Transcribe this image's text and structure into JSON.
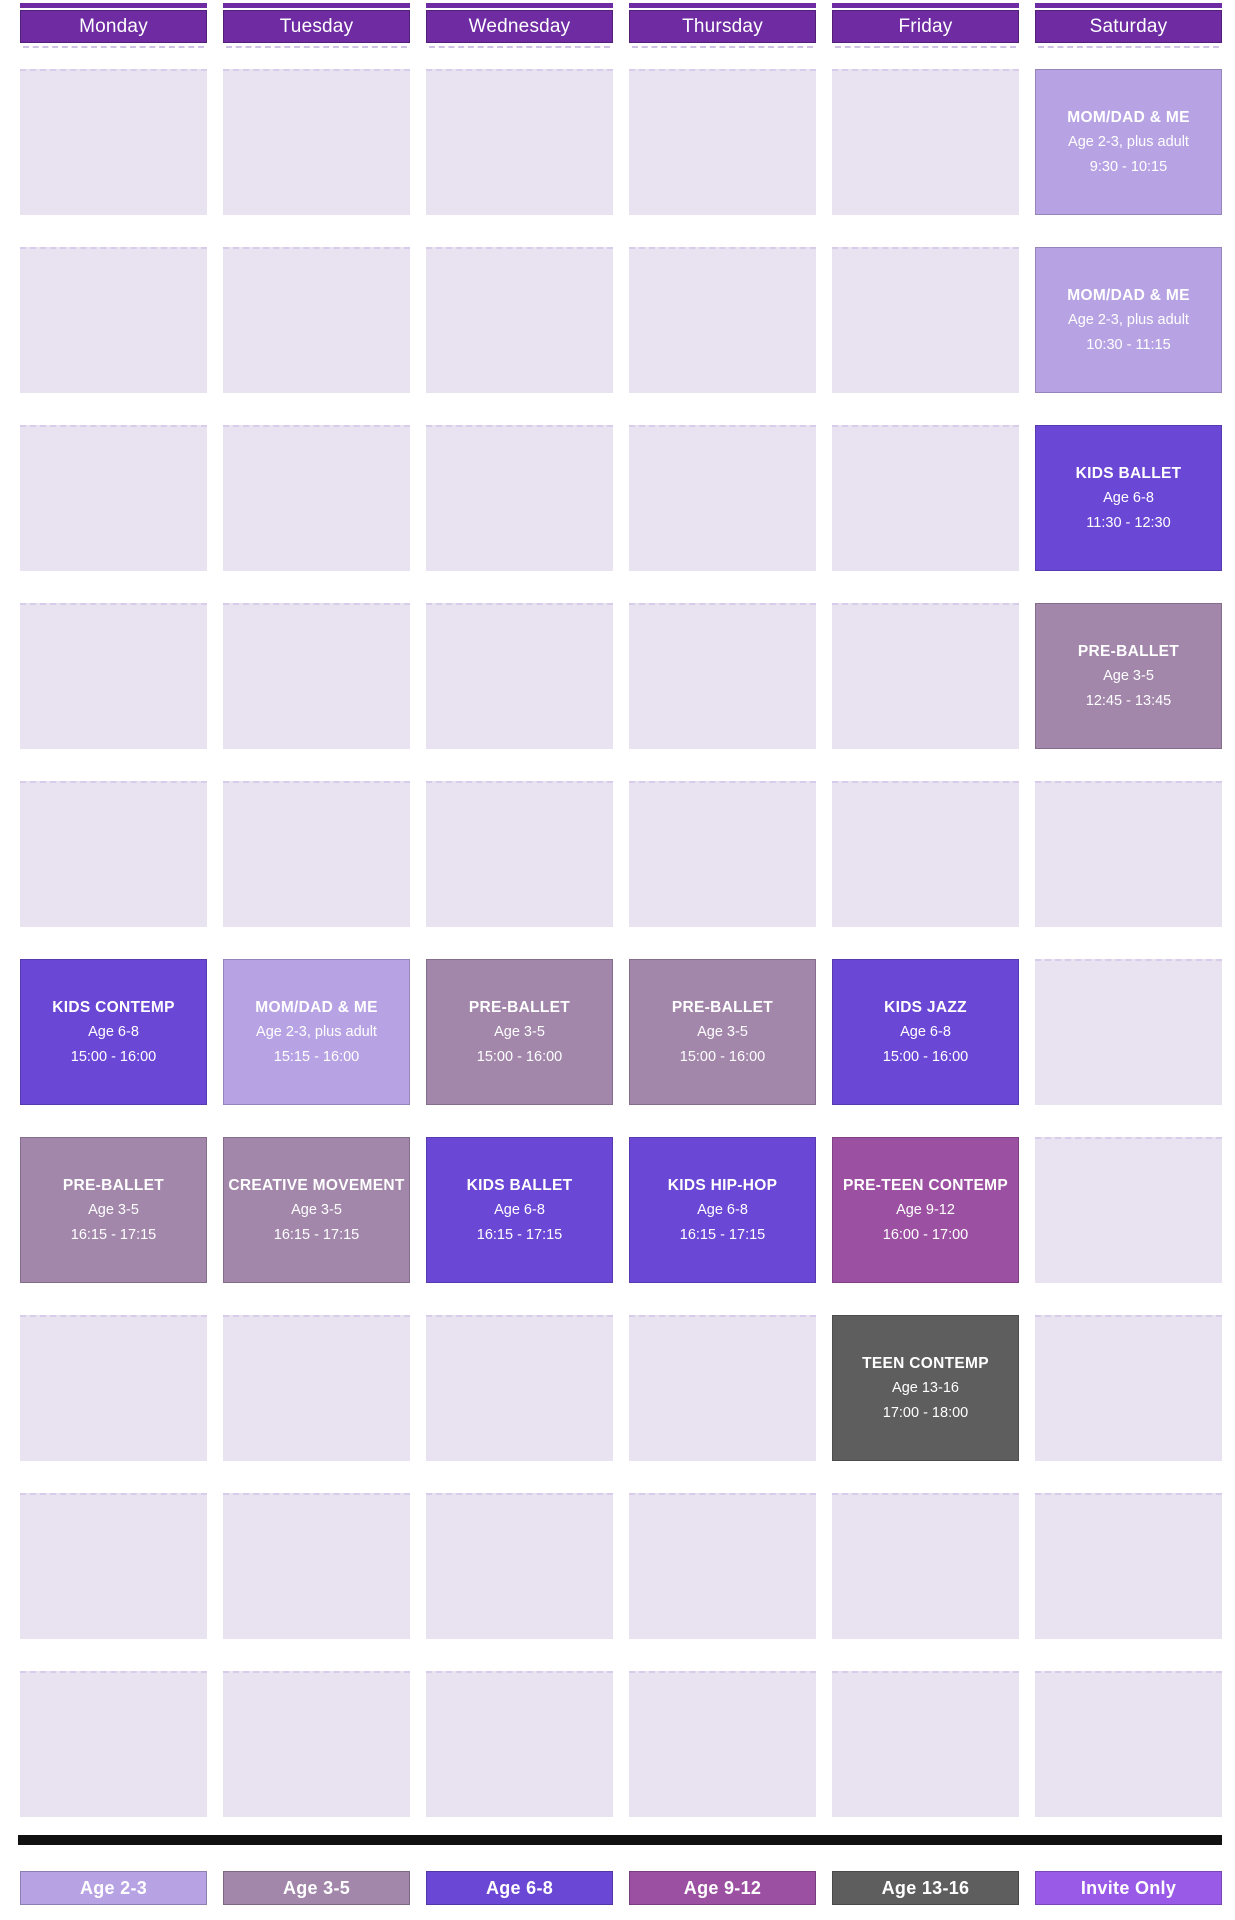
{
  "days": [
    "Monday",
    "Tuesday",
    "Wednesday",
    "Thursday",
    "Friday",
    "Saturday"
  ],
  "colors": {
    "header_bg": "#6e2ba2",
    "top_strip": "#6e2ba2",
    "empty_cell": "#e8e2f1",
    "empty_cell_border": "#d7cce9",
    "divider": "#111111",
    "age_2_3": "#b7a3e3",
    "age_3_5": "#a287ab",
    "age_6_8": "#6b47d5",
    "age_9_12": "#9c50a1",
    "age_13_16": "#5e5e5e",
    "invite_only": "#9a5ae8"
  },
  "schedule": {
    "rows": [
      {
        "cells": [
          null,
          null,
          null,
          null,
          null,
          {
            "title": "MOM/DAD & ME",
            "age": "Age 2-3, plus adult",
            "time": "9:30 - 10:15",
            "category": "age_2_3"
          }
        ]
      },
      {
        "cells": [
          null,
          null,
          null,
          null,
          null,
          {
            "title": "MOM/DAD & ME",
            "age": "Age 2-3, plus adult",
            "time": "10:30 - 11:15",
            "category": "age_2_3"
          }
        ]
      },
      {
        "cells": [
          null,
          null,
          null,
          null,
          null,
          {
            "title": "KIDS BALLET",
            "age": "Age 6-8",
            "time": "11:30 - 12:30",
            "category": "age_6_8"
          }
        ]
      },
      {
        "cells": [
          null,
          null,
          null,
          null,
          null,
          {
            "title": "PRE-BALLET",
            "age": "Age 3-5",
            "time": "12:45 - 13:45",
            "category": "age_3_5"
          }
        ]
      },
      {
        "cells": [
          null,
          null,
          null,
          null,
          null,
          null
        ]
      },
      {
        "cells": [
          {
            "title": "KIDS CONTEMP",
            "age": "Age 6-8",
            "time": "15:00 - 16:00",
            "category": "age_6_8"
          },
          {
            "title": "MOM/DAD & ME",
            "age": "Age 2-3, plus adult",
            "time": "15:15 - 16:00",
            "category": "age_2_3"
          },
          {
            "title": "PRE-BALLET",
            "age": "Age 3-5",
            "time": "15:00 - 16:00",
            "category": "age_3_5"
          },
          {
            "title": "PRE-BALLET",
            "age": "Age 3-5",
            "time": "15:00 - 16:00",
            "category": "age_3_5"
          },
          {
            "title": "KIDS JAZZ",
            "age": "Age 6-8",
            "time": "15:00 - 16:00",
            "category": "age_6_8"
          },
          null
        ]
      },
      {
        "cells": [
          {
            "title": "PRE-BALLET",
            "age": "Age 3-5",
            "time": "16:15 - 17:15",
            "category": "age_3_5"
          },
          {
            "title": "CREATIVE MOVEMENT",
            "age": "Age 3-5",
            "time": "16:15 - 17:15",
            "category": "age_3_5"
          },
          {
            "title": "KIDS BALLET",
            "age": "Age 6-8",
            "time": "16:15 - 17:15",
            "category": "age_6_8"
          },
          {
            "title": "KIDS HIP-HOP",
            "age": "Age 6-8",
            "time": "16:15 - 17:15",
            "category": "age_6_8"
          },
          {
            "title": "PRE-TEEN CONTEMP",
            "age": "Age 9-12",
            "time": "16:00 - 17:00",
            "category": "age_9_12"
          },
          null
        ]
      },
      {
        "cells": [
          null,
          null,
          null,
          null,
          {
            "title": "TEEN CONTEMP",
            "age": "Age 13-16",
            "time": "17:00 - 18:00",
            "category": "age_13_16"
          },
          null
        ]
      },
      {
        "cells": [
          null,
          null,
          null,
          null,
          null,
          null
        ]
      },
      {
        "cells": [
          null,
          null,
          null,
          null,
          null,
          null
        ]
      }
    ]
  },
  "legend": [
    {
      "label": "Age 2-3",
      "category": "age_2_3"
    },
    {
      "label": "Age 3-5",
      "category": "age_3_5"
    },
    {
      "label": "Age 6-8",
      "category": "age_6_8"
    },
    {
      "label": "Age 9-12",
      "category": "age_9_12"
    },
    {
      "label": "Age 13-16",
      "category": "age_13_16"
    },
    {
      "label": "Invite Only",
      "category": "invite_only"
    }
  ]
}
